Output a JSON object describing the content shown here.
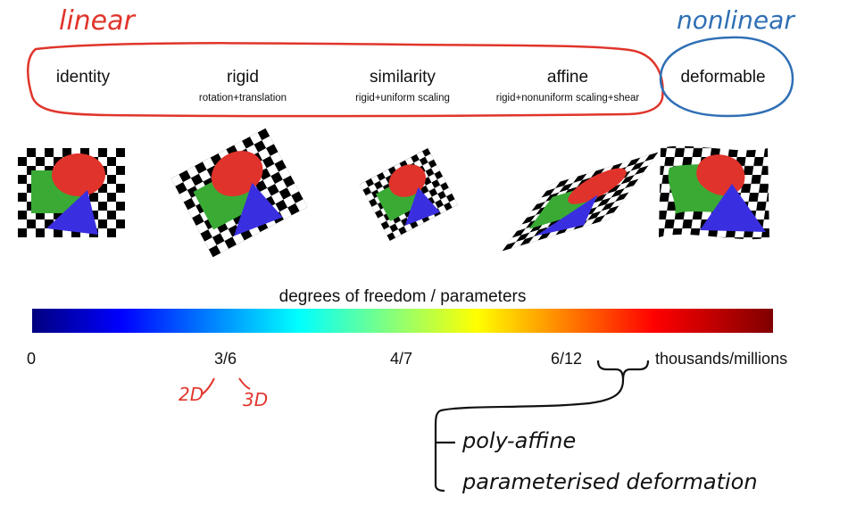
{
  "groups": {
    "linear_label": "linear",
    "nonlinear_label": "nonlinear",
    "linear_color": "#e0352b",
    "nonlinear_color": "#2f6fb5"
  },
  "transforms": [
    {
      "title": "identity",
      "subtitle": ""
    },
    {
      "title": "rigid",
      "subtitle": "rotation+translation"
    },
    {
      "title": "similarity",
      "subtitle": "rigid+uniform scaling"
    },
    {
      "title": "affine",
      "subtitle": "rigid+nonuniform scaling+shear"
    },
    {
      "title": "deformable",
      "subtitle": ""
    }
  ],
  "shape_colors": {
    "square": "#3aaa35",
    "ellipse": "#e0332b",
    "triangle": "#3a2fe0",
    "checker": "#000000"
  },
  "scale": {
    "title": "degrees of freedom / parameters",
    "colormap": "jet",
    "ticks": [
      "0",
      "3/6",
      "4/7",
      "6/12",
      "thousands/millions"
    ]
  },
  "annotations": {
    "dim_2d": "2D",
    "dim_3d": "3D",
    "examples": [
      "poly-affine",
      "parameterised deformation"
    ]
  }
}
